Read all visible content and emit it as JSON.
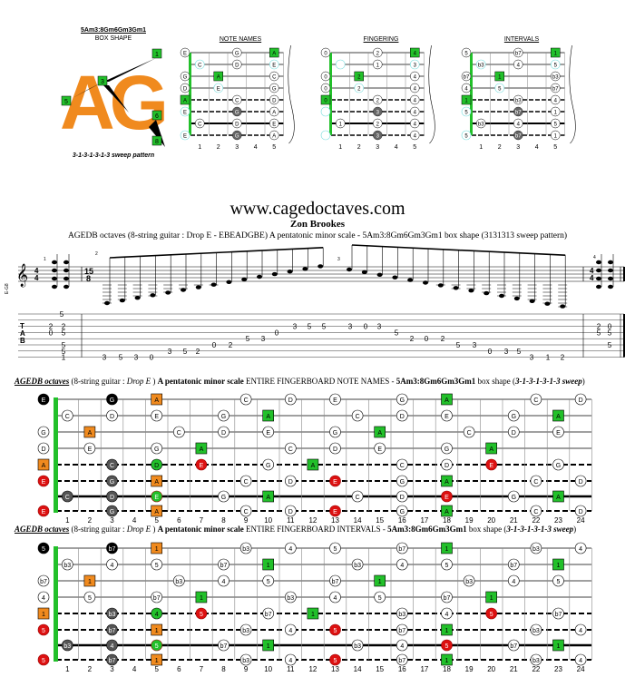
{
  "box": {
    "title": "5Am3:8Gm6Gm3Gm1",
    "subtitle": "BOX SHAPE",
    "logo": "AG",
    "caption": "3-1-3-1-3-1-3 sweep pattern",
    "nums": [
      "1",
      "3",
      "5",
      "6",
      "8"
    ]
  },
  "diagrams": {
    "note_names": {
      "title": "NOTE NAMES"
    },
    "fingering": {
      "title": "FINGERING"
    },
    "intervals": {
      "title": "INTERVALS"
    },
    "fret_numbers": [
      "1",
      "2",
      "3",
      "4",
      "5"
    ]
  },
  "site": {
    "url": "www.cagedoctaves.com",
    "author": "Zon Brookes",
    "subtitle": "AGEDB octaves (8-string guitar : Drop E - EBEADGBE) A pentatonic minor scale - 5Am3:8Gm6Gm3Gm1 box shape (3131313 sweep pattern)"
  },
  "notation": {
    "clef_label": "E-G8",
    "time1": [
      "4",
      "4"
    ],
    "time2": [
      "15",
      "8"
    ],
    "time3": [
      "4",
      "4"
    ],
    "measure_nums": [
      "1",
      "2",
      "3",
      "4"
    ],
    "tab_letters": [
      "T",
      "A",
      "B"
    ],
    "tab_numbers": [
      "5",
      "2",
      "2",
      "0",
      "5",
      "5",
      "5",
      "1",
      "3",
      "5",
      "3",
      "0",
      "3",
      "5",
      "2",
      "0",
      "2",
      "5",
      "3",
      "0",
      "3",
      "5",
      "5",
      "3",
      "0",
      "3",
      "5",
      "2",
      "0",
      "2",
      "5",
      "3",
      "0",
      "3",
      "5",
      "3",
      "1",
      "2",
      "2",
      "0",
      "5",
      "5",
      "5"
    ]
  },
  "fb_notes": {
    "heading_bold": "AGEDB octaves",
    "heading_mid": " (8-string guitar : ",
    "heading_drop": "Drop E",
    "heading_a": " ) ",
    "heading_b": "A pentatonic minor scale",
    "heading_c": " ENTIRE FINGERBOARD NOTE NAMES - ",
    "heading_d": "5Am3:8Gm6Gm3Gm1",
    "heading_e": " box shape (",
    "heading_f": "3-1-3-1-3-1-3 sweep",
    "heading_g": ")",
    "strings": [
      [
        "E",
        "",
        "",
        "G",
        "",
        "A",
        "",
        "",
        "",
        "C",
        "",
        "D",
        "",
        "E",
        "",
        "",
        "G",
        "",
        "A",
        "",
        "",
        "",
        "C",
        "",
        "D"
      ],
      [
        "",
        "C",
        "",
        "D",
        "",
        "E",
        "",
        "",
        "G",
        "",
        "A",
        "",
        "",
        "",
        "C",
        "",
        "D",
        "",
        "E",
        "",
        "",
        "G",
        "",
        "A",
        ""
      ],
      [
        "G",
        "",
        "A",
        "",
        "",
        "",
        "C",
        "",
        "D",
        "",
        "E",
        "",
        "",
        "G",
        "",
        "A",
        "",
        "",
        "",
        "C",
        "",
        "D",
        "",
        "E",
        ""
      ],
      [
        "D",
        "",
        "E",
        "",
        "",
        "G",
        "",
        "A",
        "",
        "",
        "",
        "C",
        "",
        "D",
        "",
        "E",
        "",
        "",
        "G",
        "",
        "A",
        "",
        "",
        "",
        ""
      ],
      [
        "A",
        "",
        "",
        "C",
        "",
        "D",
        "",
        "E",
        "",
        "",
        "G",
        "",
        "A",
        "",
        "",
        "",
        "C",
        "",
        "D",
        "",
        "E",
        "",
        "",
        "G",
        ""
      ],
      [
        "E",
        "",
        "",
        "G",
        "",
        "A",
        "",
        "",
        "",
        "C",
        "",
        "D",
        "",
        "E",
        "",
        "",
        "G",
        "",
        "A",
        "",
        "",
        "",
        "C",
        "",
        "D"
      ],
      [
        "",
        "C",
        "",
        "D",
        "",
        "E",
        "",
        "",
        "G",
        "",
        "A",
        "",
        "",
        "",
        "C",
        "",
        "D",
        "",
        "E",
        "",
        "",
        "G",
        "",
        "A",
        ""
      ],
      [
        "E",
        "",
        "",
        "G",
        "",
        "A",
        "",
        "",
        "",
        "C",
        "",
        "D",
        "",
        "E",
        "",
        "",
        "G",
        "",
        "A",
        "",
        "",
        "",
        "C",
        "",
        "D"
      ]
    ]
  },
  "fb_intervals": {
    "heading_bold": "AGEDB octaves",
    "heading_mid": " (8-string guitar : ",
    "heading_drop": "Drop E",
    "heading_a": " ) ",
    "heading_b": "A pentatonic minor scale",
    "heading_c": " ENTIRE FINGERBOARD INTERVALS - ",
    "heading_d": "5Am3:8Gm6Gm3Gm1",
    "heading_e": " box shape (",
    "heading_f": "3-1-3-1-3-1-3 sweep",
    "heading_g": ")",
    "strings": [
      [
        "5",
        "",
        "",
        "b7",
        "",
        "1",
        "",
        "",
        "",
        "b3",
        "",
        "4",
        "",
        "5",
        "",
        "",
        "b7",
        "",
        "1",
        "",
        "",
        "",
        "b3",
        "",
        "4"
      ],
      [
        "",
        "b3",
        "",
        "4",
        "",
        "5",
        "",
        "",
        "b7",
        "",
        "1",
        "",
        "",
        "",
        "b3",
        "",
        "4",
        "",
        "5",
        "",
        "",
        "b7",
        "",
        "1",
        ""
      ],
      [
        "b7",
        "",
        "1",
        "",
        "",
        "",
        "b3",
        "",
        "4",
        "",
        "5",
        "",
        "",
        "b7",
        "",
        "1",
        "",
        "",
        "",
        "b3",
        "",
        "4",
        "",
        "5",
        ""
      ],
      [
        "4",
        "",
        "5",
        "",
        "",
        "b7",
        "",
        "1",
        "",
        "",
        "",
        "b3",
        "",
        "4",
        "",
        "5",
        "",
        "",
        "b7",
        "",
        "1",
        "",
        "",
        "",
        ""
      ],
      [
        "1",
        "",
        "",
        "b3",
        "",
        "4",
        "",
        "5",
        "",
        "",
        "b7",
        "",
        "1",
        "",
        "",
        "",
        "b3",
        "",
        "4",
        "",
        "5",
        "",
        "",
        "b7",
        ""
      ],
      [
        "5",
        "",
        "",
        "b7",
        "",
        "1",
        "",
        "",
        "",
        "b3",
        "",
        "4",
        "",
        "5",
        "",
        "",
        "b7",
        "",
        "1",
        "",
        "",
        "",
        "b3",
        "",
        "4"
      ],
      [
        "",
        "b3",
        "",
        "4",
        "",
        "5",
        "",
        "",
        "b7",
        "",
        "1",
        "",
        "",
        "",
        "b3",
        "",
        "4",
        "",
        "5",
        "",
        "",
        "b7",
        "",
        "1",
        ""
      ],
      [
        "5",
        "",
        "",
        "b7",
        "",
        "1",
        "",
        "",
        "",
        "b3",
        "",
        "4",
        "",
        "5",
        "",
        "",
        "b7",
        "",
        "1",
        "",
        "",
        "",
        "b3",
        "",
        "4"
      ]
    ]
  },
  "fret_numbers": [
    "1",
    "2",
    "3",
    "4",
    "5",
    "6",
    "7",
    "8",
    "9",
    "10",
    "11",
    "12",
    "13",
    "14",
    "15",
    "16",
    "17",
    "18",
    "19",
    "20",
    "21",
    "22",
    "23",
    "24"
  ],
  "colors": {
    "orange": "#f08a1e",
    "green": "#22c02a",
    "red": "#dd1111",
    "dark": "#555555",
    "black": "#000000"
  }
}
